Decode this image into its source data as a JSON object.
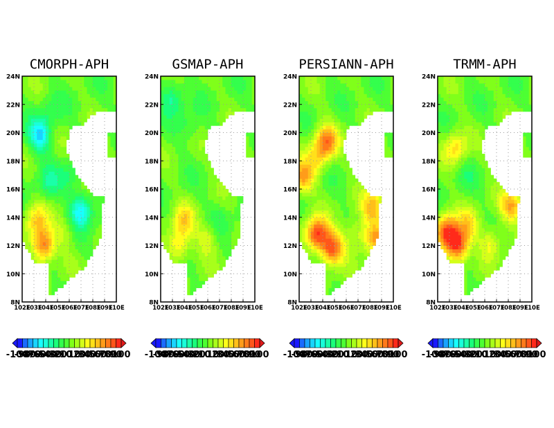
{
  "chart_data": [
    {
      "type": "heatmap",
      "title": "CMORPH-APH",
      "xlabel": "",
      "ylabel": "",
      "xlim": [
        102,
        110
      ],
      "ylim": [
        8,
        24
      ],
      "x_tick_labels": [
        "102E",
        "103E",
        "104E",
        "105E",
        "106E",
        "107E",
        "108E",
        "109E",
        "110E"
      ],
      "y_tick_labels": [
        "8N",
        "10N",
        "12N",
        "14N",
        "16N",
        "18N",
        "20N",
        "22N",
        "24N"
      ],
      "grid": true,
      "features": [
        {
          "kind": "hotspot",
          "lon": 103.8,
          "lat": 12.0,
          "value": 80
        },
        {
          "kind": "hotspot",
          "lon": 103.2,
          "lat": 13.8,
          "value": 45
        },
        {
          "kind": "hotspot",
          "lon": 105.6,
          "lat": 13.0,
          "value": 20
        },
        {
          "kind": "coldspot",
          "lon": 103.5,
          "lat": 19.8,
          "value": -60
        },
        {
          "kind": "coldspot",
          "lon": 107.0,
          "lat": 14.5,
          "value": -60
        },
        {
          "kind": "coldspot",
          "lon": 104.2,
          "lat": 16.5,
          "value": -25
        },
        {
          "kind": "coldspot",
          "lon": 106.0,
          "lat": 17.0,
          "value": -20
        },
        {
          "kind": "coldspot",
          "lon": 104.5,
          "lat": 21.5,
          "value": -15
        }
      ]
    },
    {
      "type": "heatmap",
      "title": "GSMAP-APH",
      "xlabel": "",
      "ylabel": "",
      "xlim": [
        102,
        110
      ],
      "ylim": [
        8,
        24
      ],
      "x_tick_labels": [
        "102E",
        "103E",
        "104E",
        "105E",
        "106E",
        "107E",
        "108E",
        "109E",
        "110E"
      ],
      "y_tick_labels": [
        "8N",
        "10N",
        "12N",
        "14N",
        "16N",
        "18N",
        "20N",
        "22N",
        "24N"
      ],
      "grid": true,
      "features": [
        {
          "kind": "hotspot",
          "lon": 104.0,
          "lat": 13.8,
          "value": 40
        },
        {
          "kind": "hotspot",
          "lon": 103.5,
          "lat": 12.0,
          "value": 45
        },
        {
          "kind": "hotspot",
          "lon": 106.0,
          "lat": 12.5,
          "value": 30
        },
        {
          "kind": "coldspot",
          "lon": 103.0,
          "lat": 22.5,
          "value": -35
        },
        {
          "kind": "coldspot",
          "lon": 104.5,
          "lat": 20.5,
          "value": -15
        },
        {
          "kind": "coldspot",
          "lon": 107.0,
          "lat": 14.0,
          "value": -15
        }
      ]
    },
    {
      "type": "heatmap",
      "title": "PERSIANN-APH",
      "xlabel": "",
      "ylabel": "",
      "xlim": [
        102,
        110
      ],
      "ylim": [
        8,
        24
      ],
      "x_tick_labels": [
        "102E",
        "103E",
        "104E",
        "105E",
        "106E",
        "107E",
        "108E",
        "109E",
        "110E"
      ],
      "y_tick_labels": [
        "8N",
        "10N",
        "12N",
        "14N",
        "16N",
        "18N",
        "20N",
        "22N",
        "24N"
      ],
      "grid": true,
      "features": [
        {
          "kind": "hotspot",
          "lon": 103.5,
          "lat": 12.8,
          "value": 90
        },
        {
          "kind": "hotspot",
          "lon": 104.8,
          "lat": 11.8,
          "value": 85
        },
        {
          "kind": "hotspot",
          "lon": 102.3,
          "lat": 16.8,
          "value": 60
        },
        {
          "kind": "hotspot",
          "lon": 104.3,
          "lat": 19.4,
          "value": 70
        },
        {
          "kind": "hotspot",
          "lon": 108.3,
          "lat": 14.7,
          "value": 55
        },
        {
          "kind": "hotspot",
          "lon": 108.5,
          "lat": 12.5,
          "value": 55
        },
        {
          "kind": "hotspot",
          "lon": 103.5,
          "lat": 18.2,
          "value": 35
        },
        {
          "kind": "hotspot",
          "lon": 106.8,
          "lat": 12.8,
          "value": 30
        }
      ]
    },
    {
      "type": "heatmap",
      "title": "TRMM-APH",
      "xlabel": "",
      "ylabel": "",
      "xlim": [
        102,
        110
      ],
      "ylim": [
        8,
        24
      ],
      "x_tick_labels": [
        "102E",
        "103E",
        "104E",
        "105E",
        "106E",
        "107E",
        "108E",
        "109E",
        "110E"
      ],
      "y_tick_labels": [
        "8N",
        "10N",
        "12N",
        "14N",
        "16N",
        "18N",
        "20N",
        "22N",
        "24N"
      ],
      "grid": true,
      "features": [
        {
          "kind": "hotspot",
          "lon": 102.8,
          "lat": 13.0,
          "value": 85
        },
        {
          "kind": "hotspot",
          "lon": 103.7,
          "lat": 12.0,
          "value": 90
        },
        {
          "kind": "hotspot",
          "lon": 108.3,
          "lat": 14.8,
          "value": 60
        },
        {
          "kind": "hotspot",
          "lon": 103.5,
          "lat": 18.9,
          "value": 45
        },
        {
          "kind": "hotspot",
          "lon": 106.5,
          "lat": 12.2,
          "value": 35
        },
        {
          "kind": "hotspot",
          "lon": 104.6,
          "lat": 13.5,
          "value": 35
        },
        {
          "kind": "coldspot",
          "lon": 104.5,
          "lat": 17.0,
          "value": -10
        }
      ]
    }
  ],
  "colorbar": {
    "levels": [
      -100,
      -90,
      -80,
      -70,
      -60,
      -50,
      -40,
      -30,
      -20,
      -10,
      0,
      10,
      20,
      30,
      40,
      50,
      60,
      70,
      80,
      90,
      100
    ],
    "colors": [
      "#1a1aff",
      "#1b6bff",
      "#1aa3ff",
      "#1ad4ff",
      "#19ffff",
      "#1affd9",
      "#1affa8",
      "#1aff7a",
      "#33ff4d",
      "#4dff33",
      "#80ff1a",
      "#a8ff1a",
      "#d4ff1a",
      "#ffff1a",
      "#ffe01a",
      "#ffbf1a",
      "#ff9c1a",
      "#ff7a1a",
      "#ff561a",
      "#ff2a1a"
    ],
    "low_arrow_color": "#1a1aff",
    "high_arrow_color": "#e01a1a",
    "land_base_value": 0
  }
}
